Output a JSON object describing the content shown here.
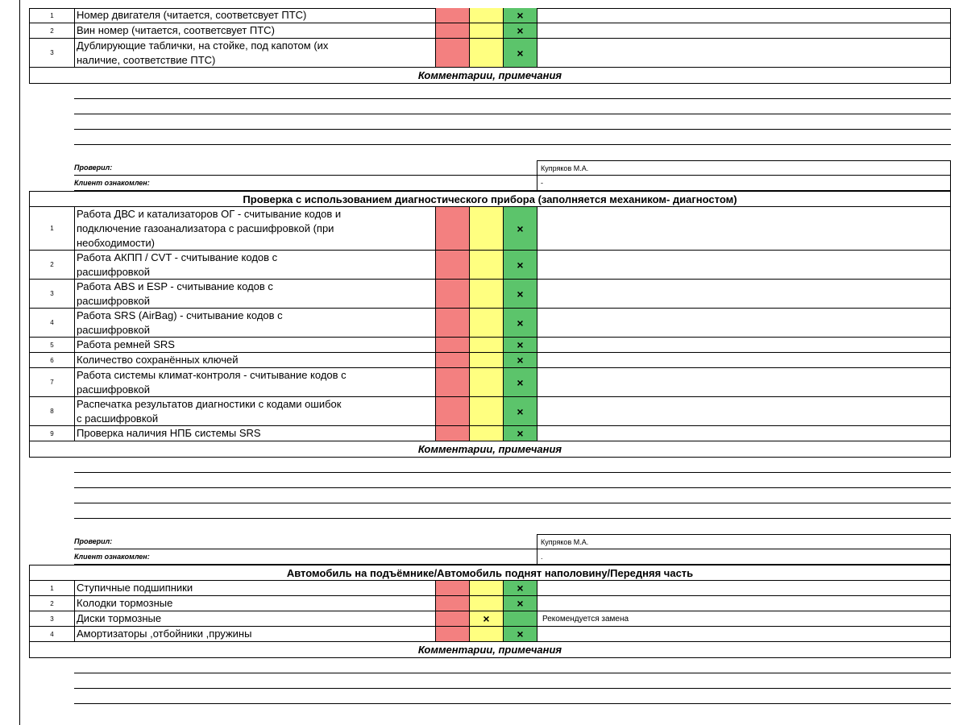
{
  "section1": {
    "items": [
      {
        "num": "1",
        "text": "Номер двигателя (читается, соответсвует ПТС)",
        "mark": "green",
        "note": ""
      },
      {
        "num": "2",
        "text": "Вин номер (читается, соответсвует ПТС)",
        "mark": "green",
        "note": ""
      },
      {
        "num": "3",
        "text": "Дублирующие таблички, на стойке, под капотом (их\nналичие, соответствие ПТС)",
        "mark": "green",
        "note": ""
      }
    ],
    "comments_title": "Комментарии, примечания",
    "checked_label": "Проверил:",
    "checked_value": "Купряков М.А.",
    "client_label": "Клиент ознакомлен:",
    "client_value": "-"
  },
  "section2": {
    "title": "Проверка с использованием диагностического прибора (заполняется механиком- диагностом)",
    "items": [
      {
        "num": "1",
        "text": "Работа ДВС и катализаторов ОГ - считывание кодов и\nподключение газоанализатора с расшифровкой (при\nнеобходимости)",
        "mark": "green",
        "note": ""
      },
      {
        "num": "2",
        "text": "Работа АКПП / CVT - считывание кодов с\nрасшифровкой",
        "mark": "green",
        "note": ""
      },
      {
        "num": "3",
        "text": "Работа ABS и ESP - считывание кодов с\nрасшифровкой",
        "mark": "green",
        "note": ""
      },
      {
        "num": "4",
        "text": "Работа SRS (AirBag) - считывание кодов с\nрасшифровкой",
        "mark": "green",
        "note": ""
      },
      {
        "num": "5",
        "text": "Работа ремней SRS",
        "mark": "green",
        "note": ""
      },
      {
        "num": "6",
        "text": "Количество сохранённых ключей",
        "mark": "green",
        "note": ""
      },
      {
        "num": "7",
        "text": "Работа системы климат-контроля - считывание кодов с\nрасшифровкой",
        "mark": "green",
        "note": ""
      },
      {
        "num": "8",
        "text": "Распечатка результатов диагностики с кодами ошибок\nс расшифровкой",
        "mark": "green",
        "note": ""
      },
      {
        "num": "9",
        "text": "Проверка наличия НПБ системы SRS",
        "mark": "green",
        "note": ""
      }
    ],
    "comments_title": "Комментарии, примечания",
    "checked_label": "Проверил:",
    "checked_value": "Купряков М.А.",
    "client_label": "Клиент ознакомлен:",
    "client_value": "."
  },
  "section3": {
    "title": "Автомобиль на подъёмнике/Автомобиль поднят наполовину/Передняя часть",
    "items": [
      {
        "num": "1",
        "text": "Ступичные подшипники",
        "mark": "green",
        "note": ""
      },
      {
        "num": "2",
        "text": "Колодки тормозные",
        "mark": "green",
        "note": ""
      },
      {
        "num": "3",
        "text": "Диски тормозные",
        "mark": "yellow",
        "note": "Рекомендуется замена"
      },
      {
        "num": "4",
        "text": "Амортизаторы ,отбойники ,пружины",
        "mark": "green",
        "note": ""
      }
    ],
    "comments_title": "Комментарии, примечания"
  },
  "mark_symbol": "×",
  "colors": {
    "red": "#f38080",
    "yellow": "#ffff80",
    "green": "#5cc46b"
  }
}
